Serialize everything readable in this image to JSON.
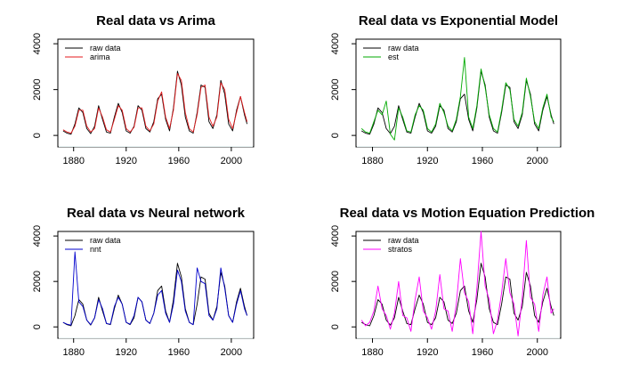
{
  "chart_data": [
    {
      "type": "line",
      "title": "Real data vs Arima",
      "xlabel": "",
      "ylabel": "",
      "xlim": [
        1868,
        2017
      ],
      "ylim": [
        -500,
        4200
      ],
      "xticks": [
        "1880",
        "1920",
        "1960",
        "2000"
      ],
      "yticks": [
        "0",
        "2000",
        "4000"
      ],
      "legend": "top-left",
      "series": [
        {
          "name": "raw data",
          "color": "#000000",
          "x": [
            1872,
            1875,
            1878,
            1881,
            1884,
            1887,
            1890,
            1893,
            1896,
            1899,
            1902,
            1905,
            1908,
            1911,
            1914,
            1917,
            1920,
            1923,
            1926,
            1929,
            1932,
            1935,
            1938,
            1941,
            1944,
            1947,
            1950,
            1953,
            1956,
            1959,
            1962,
            1965,
            1968,
            1971,
            1974,
            1977,
            1980,
            1983,
            1986,
            1989,
            1992,
            1995,
            1998,
            2001,
            2004,
            2007,
            2010,
            2012
          ],
          "y": [
            200,
            100,
            50,
            500,
            1200,
            1000,
            300,
            80,
            400,
            1300,
            700,
            150,
            100,
            800,
            1400,
            1000,
            200,
            100,
            400,
            1300,
            1100,
            300,
            150,
            600,
            1600,
            1800,
            700,
            200,
            1200,
            2800,
            2200,
            800,
            200,
            100,
            1000,
            2200,
            2100,
            600,
            300,
            900,
            2400,
            1800,
            500,
            200,
            1100,
            1700,
            900,
            500
          ]
        },
        {
          "name": "arima",
          "color": "#e41a1c",
          "x": [
            1872,
            1875,
            1878,
            1881,
            1884,
            1887,
            1890,
            1893,
            1896,
            1899,
            1902,
            1905,
            1908,
            1911,
            1914,
            1917,
            1920,
            1923,
            1926,
            1929,
            1932,
            1935,
            1938,
            1941,
            1944,
            1947,
            1950,
            1953,
            1956,
            1959,
            1962,
            1965,
            1968,
            1971,
            1974,
            1977,
            1980,
            1983,
            1986,
            1989,
            1992,
            1995,
            1998,
            2001,
            2004,
            2007,
            2010,
            2012
          ],
          "y": [
            250,
            150,
            100,
            400,
            1100,
            1100,
            400,
            150,
            300,
            1200,
            800,
            250,
            150,
            700,
            1300,
            1100,
            300,
            150,
            350,
            1200,
            1200,
            400,
            200,
            500,
            1500,
            1900,
            800,
            300,
            1100,
            2700,
            2400,
            1000,
            300,
            150,
            900,
            2100,
            2200,
            800,
            400,
            800,
            2300,
            2000,
            700,
            300,
            1000,
            1700,
            1000,
            600
          ]
        }
      ]
    },
    {
      "type": "line",
      "title": "Real data vs Exponential Model",
      "xlabel": "",
      "ylabel": "",
      "xlim": [
        1868,
        2017
      ],
      "ylim": [
        -500,
        4200
      ],
      "xticks": [
        "1880",
        "1920",
        "1960",
        "2000"
      ],
      "yticks": [
        "0",
        "2000",
        "4000"
      ],
      "legend": "top-left",
      "series": [
        {
          "name": "raw data",
          "color": "#000000",
          "x": [
            1872,
            1875,
            1878,
            1881,
            1884,
            1887,
            1890,
            1893,
            1896,
            1899,
            1902,
            1905,
            1908,
            1911,
            1914,
            1917,
            1920,
            1923,
            1926,
            1929,
            1932,
            1935,
            1938,
            1941,
            1944,
            1947,
            1950,
            1953,
            1956,
            1959,
            1962,
            1965,
            1968,
            1971,
            1974,
            1977,
            1980,
            1983,
            1986,
            1989,
            1992,
            1995,
            1998,
            2001,
            2004,
            2007,
            2010,
            2012
          ],
          "y": [
            200,
            100,
            50,
            500,
            1200,
            1000,
            300,
            80,
            400,
            1300,
            700,
            150,
            100,
            800,
            1400,
            1000,
            200,
            100,
            400,
            1300,
            1100,
            300,
            150,
            600,
            1600,
            1800,
            700,
            200,
            1200,
            2800,
            2200,
            800,
            200,
            100,
            1000,
            2200,
            2100,
            600,
            300,
            900,
            2400,
            1800,
            500,
            200,
            1100,
            1700,
            900,
            500
          ]
        },
        {
          "name": "est",
          "color": "#00aa00",
          "x": [
            1872,
            1875,
            1878,
            1881,
            1884,
            1887,
            1890,
            1893,
            1896,
            1899,
            1902,
            1905,
            1908,
            1911,
            1914,
            1917,
            1920,
            1923,
            1926,
            1929,
            1932,
            1935,
            1938,
            1941,
            1944,
            1947,
            1950,
            1953,
            1956,
            1959,
            1962,
            1965,
            1968,
            1971,
            1974,
            1977,
            1980,
            1983,
            1986,
            1989,
            1992,
            1995,
            1998,
            2001,
            2004,
            2007,
            2010,
            2012
          ],
          "y": [
            300,
            150,
            100,
            600,
            1100,
            900,
            1500,
            50,
            -200,
            1200,
            800,
            200,
            150,
            900,
            1300,
            1100,
            300,
            150,
            500,
            1400,
            1000,
            400,
            200,
            700,
            1700,
            3400,
            800,
            300,
            1300,
            2900,
            2100,
            900,
            300,
            150,
            1100,
            2300,
            2000,
            700,
            400,
            1000,
            2500,
            1700,
            600,
            300,
            1200,
            1800,
            800,
            600
          ]
        }
      ]
    },
    {
      "type": "line",
      "title": "Real data vs Neural network",
      "xlabel": "",
      "ylabel": "",
      "xlim": [
        1868,
        2017
      ],
      "ylim": [
        -500,
        4200
      ],
      "xticks": [
        "1880",
        "1920",
        "1960",
        "2000"
      ],
      "yticks": [
        "0",
        "2000",
        "4000"
      ],
      "legend": "top-left",
      "series": [
        {
          "name": "raw data",
          "color": "#000000",
          "x": [
            1872,
            1875,
            1878,
            1881,
            1884,
            1887,
            1890,
            1893,
            1896,
            1899,
            1902,
            1905,
            1908,
            1911,
            1914,
            1917,
            1920,
            1923,
            1926,
            1929,
            1932,
            1935,
            1938,
            1941,
            1944,
            1947,
            1950,
            1953,
            1956,
            1959,
            1962,
            1965,
            1968,
            1971,
            1974,
            1977,
            1980,
            1983,
            1986,
            1989,
            1992,
            1995,
            1998,
            2001,
            2004,
            2007,
            2010,
            2012
          ],
          "y": [
            200,
            100,
            50,
            500,
            1200,
            1000,
            300,
            80,
            400,
            1300,
            700,
            150,
            100,
            800,
            1400,
            1000,
            200,
            100,
            400,
            1300,
            1100,
            300,
            150,
            600,
            1600,
            1800,
            700,
            200,
            1200,
            2800,
            2200,
            800,
            200,
            100,
            1000,
            2200,
            2100,
            600,
            300,
            900,
            2400,
            1800,
            500,
            200,
            1100,
            1700,
            900,
            500
          ]
        },
        {
          "name": "nnt",
          "color": "#0000cc",
          "x": [
            1872,
            1875,
            1878,
            1881,
            1884,
            1887,
            1890,
            1893,
            1896,
            1899,
            1902,
            1905,
            1908,
            1911,
            1914,
            1917,
            1920,
            1923,
            1926,
            1929,
            1932,
            1935,
            1938,
            1941,
            1944,
            1947,
            1950,
            1953,
            1956,
            1959,
            1962,
            1965,
            1968,
            1971,
            1974,
            1977,
            1980,
            1983,
            1986,
            1989,
            1992,
            1995,
            1998,
            2001,
            2004,
            2007,
            2010,
            2012
          ],
          "y": [
            200,
            120,
            80,
            3300,
            1100,
            900,
            300,
            100,
            400,
            1200,
            800,
            150,
            120,
            900,
            1300,
            1000,
            200,
            120,
            500,
            1300,
            1100,
            300,
            150,
            600,
            1400,
            1600,
            600,
            200,
            1000,
            2500,
            2000,
            700,
            200,
            100,
            2600,
            2000,
            1900,
            500,
            300,
            800,
            2600,
            1700,
            500,
            200,
            1000,
            1600,
            800,
            500
          ]
        }
      ]
    },
    {
      "type": "line",
      "title": "Real data vs Motion Equation Prediction",
      "xlabel": "",
      "ylabel": "",
      "xlim": [
        1868,
        2017
      ],
      "ylim": [
        -500,
        4200
      ],
      "xticks": [
        "1880",
        "1920",
        "1960",
        "2000"
      ],
      "yticks": [
        "0",
        "2000",
        "4000"
      ],
      "legend": "top-left",
      "series": [
        {
          "name": "raw data",
          "color": "#000000",
          "x": [
            1872,
            1875,
            1878,
            1881,
            1884,
            1887,
            1890,
            1893,
            1896,
            1899,
            1902,
            1905,
            1908,
            1911,
            1914,
            1917,
            1920,
            1923,
            1926,
            1929,
            1932,
            1935,
            1938,
            1941,
            1944,
            1947,
            1950,
            1953,
            1956,
            1959,
            1962,
            1965,
            1968,
            1971,
            1974,
            1977,
            1980,
            1983,
            1986,
            1989,
            1992,
            1995,
            1998,
            2001,
            2004,
            2007,
            2010,
            2012
          ],
          "y": [
            200,
            100,
            50,
            500,
            1200,
            1000,
            300,
            80,
            400,
            1300,
            700,
            150,
            100,
            800,
            1400,
            1000,
            200,
            100,
            400,
            1300,
            1100,
            300,
            150,
            600,
            1600,
            1800,
            700,
            200,
            1200,
            2800,
            2200,
            800,
            200,
            100,
            1000,
            2200,
            2100,
            600,
            300,
            900,
            2400,
            1800,
            500,
            200,
            1100,
            1700,
            900,
            500
          ]
        },
        {
          "name": "stratos",
          "color": "#ff00ff",
          "x": [
            1872,
            1875,
            1878,
            1881,
            1884,
            1887,
            1890,
            1893,
            1896,
            1899,
            1902,
            1905,
            1908,
            1911,
            1914,
            1917,
            1920,
            1923,
            1926,
            1929,
            1932,
            1935,
            1938,
            1941,
            1944,
            1947,
            1950,
            1953,
            1956,
            1959,
            1962,
            1965,
            1968,
            1971,
            1974,
            1977,
            1980,
            1983,
            1986,
            1989,
            1992,
            1995,
            1998,
            2001,
            2004,
            2007,
            2010,
            2012
          ],
          "y": [
            300,
            50,
            200,
            700,
            1800,
            800,
            500,
            -100,
            600,
            2000,
            500,
            400,
            -200,
            1200,
            2200,
            700,
            400,
            -100,
            700,
            2300,
            800,
            700,
            -200,
            1000,
            3000,
            1500,
            1100,
            -300,
            1700,
            4200,
            1800,
            1200,
            -300,
            300,
            1500,
            3000,
            1500,
            1000,
            -400,
            1300,
            3800,
            1300,
            1000,
            -200,
            1400,
            2200,
            600,
            800
          ]
        }
      ]
    }
  ]
}
